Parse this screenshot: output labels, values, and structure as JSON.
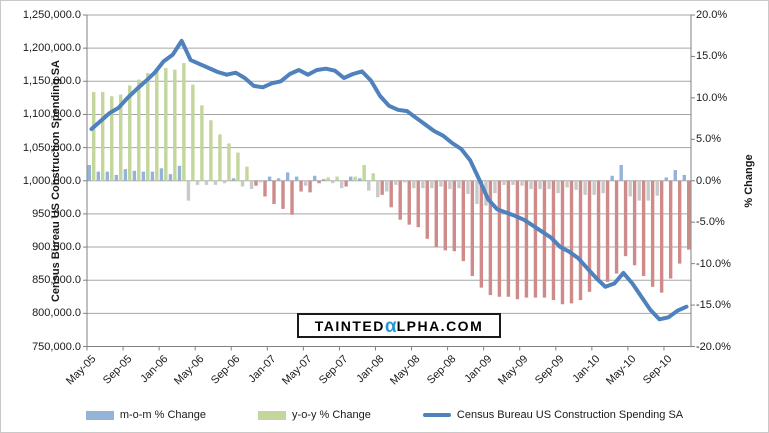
{
  "watermark": {
    "left": "TAINTED",
    "alpha": "α",
    "right": "LPHA.COM",
    "alpha_color": "#2798d4"
  },
  "chart_data": {
    "type": "combo-bar-line",
    "title": "",
    "legend_position": "bottom",
    "grid": "horizontal-only",
    "months": [
      "May-05",
      "Jun-05",
      "Jul-05",
      "Aug-05",
      "Sep-05",
      "Oct-05",
      "Nov-05",
      "Dec-05",
      "Jan-06",
      "Feb-06",
      "Mar-06",
      "Apr-06",
      "May-06",
      "Jun-06",
      "Jul-06",
      "Aug-06",
      "Sep-06",
      "Oct-06",
      "Nov-06",
      "Dec-06",
      "Jan-07",
      "Feb-07",
      "Mar-07",
      "Apr-07",
      "May-07",
      "Jun-07",
      "Jul-07",
      "Aug-07",
      "Sep-07",
      "Oct-07",
      "Nov-07",
      "Dec-07",
      "Jan-08",
      "Feb-08",
      "Mar-08",
      "Apr-08",
      "May-08",
      "Jun-08",
      "Jul-08",
      "Aug-08",
      "Sep-08",
      "Oct-08",
      "Nov-08",
      "Dec-08",
      "Jan-09",
      "Feb-09",
      "Mar-09",
      "Apr-09",
      "May-09",
      "Jun-09",
      "Jul-09",
      "Aug-09",
      "Sep-09",
      "Oct-09",
      "Nov-09",
      "Dec-09",
      "Jan-10",
      "Feb-10",
      "Mar-10",
      "Apr-10",
      "May-10",
      "Jun-10",
      "Jul-10",
      "Aug-10",
      "Sep-10",
      "Oct-10",
      "Nov-10"
    ],
    "x_axis": {
      "tick_every": 4,
      "labels_shown": [
        "May-05",
        "Sep-05",
        "Jan-06",
        "May-06",
        "Sep-06",
        "Jan-07",
        "May-07",
        "Sep-07",
        "Jan-08",
        "May-08",
        "Sep-08",
        "Jan-09",
        "May-09",
        "Sep-09",
        "Jan-10",
        "May-10",
        "Sep-10"
      ]
    },
    "left_axis": {
      "title": "Census Bureau US Construction Spending SA",
      "min": 750000,
      "max": 1250000,
      "step": 50000,
      "tick_labels": [
        "1,250,000.0",
        "1,200,000.0",
        "1,150,000.0",
        "1,100,000.0",
        "1,050,000.0",
        "1,000,000.0",
        "950,000.0",
        "900,000.0",
        "850,000.0",
        "800,000.0",
        "750,000.0"
      ]
    },
    "right_axis": {
      "title": "% Change",
      "min": -20,
      "max": 20,
      "step": 5,
      "tick_labels": [
        "20.0%",
        "15.0%",
        "10.0%",
        "5.0%",
        "0.0%",
        "-5.0%",
        "-10.0%",
        "-15.0%",
        "-20.0%"
      ]
    },
    "series": [
      {
        "name": "m-o-m % Change",
        "type": "bar",
        "axis": "right",
        "color_positive": "#95B3D7",
        "color_negative": "#C9C9C9",
        "values": [
          1.9,
          1.1,
          1.1,
          0.7,
          1.4,
          1.2,
          1.1,
          1.1,
          1.5,
          0.8,
          1.8,
          -2.4,
          -0.5,
          -0.5,
          -0.5,
          -0.3,
          0.3,
          -0.7,
          -1.0,
          -0.2,
          0.5,
          0.3,
          1.0,
          0.5,
          -0.6,
          0.6,
          0.2,
          -0.3,
          -0.9,
          0.5,
          0.3,
          -1.2,
          -2.0,
          -1.3,
          -0.5,
          -0.2,
          -0.9,
          -0.9,
          -0.9,
          -0.7,
          -1.0,
          -0.9,
          -1.6,
          -2.8,
          -3.0,
          -1.5,
          -0.5,
          -0.5,
          -0.6,
          -1.0,
          -1.0,
          -1.0,
          -1.5,
          -0.8,
          -1.1,
          -1.7,
          -1.7,
          -1.5,
          0.6,
          1.9,
          -1.9,
          -2.4,
          -2.4,
          -1.8,
          0.4,
          1.3,
          0.7
        ]
      },
      {
        "name": "y-o-y % Change",
        "type": "bar",
        "axis": "right",
        "color_positive": "#C3D69B",
        "color_negative": "#CF8A8A",
        "values": [
          10.7,
          10.7,
          10.2,
          10.4,
          11.5,
          12.2,
          13.0,
          13.3,
          13.6,
          13.4,
          14.2,
          11.6,
          9.1,
          7.3,
          5.6,
          4.5,
          3.4,
          1.7,
          -0.6,
          -1.9,
          -2.8,
          -3.4,
          -4.1,
          -1.3,
          -1.4,
          -0.3,
          0.4,
          0.5,
          -0.7,
          0.5,
          1.9,
          0.9,
          -1.7,
          -3.2,
          -4.7,
          -5.3,
          -5.6,
          -7.0,
          -8.0,
          -8.4,
          -8.5,
          -9.7,
          -11.5,
          -12.9,
          -13.8,
          -14.0,
          -14.0,
          -14.3,
          -14.1,
          -14.1,
          -14.1,
          -14.4,
          -14.9,
          -14.8,
          -14.4,
          -13.4,
          -12.2,
          -12.2,
          -11.2,
          -9.1,
          -10.2,
          -11.5,
          -12.8,
          -13.5,
          -11.8,
          -10.0,
          -8.3
        ]
      },
      {
        "name": "Census Bureau US Construction Spending SA",
        "type": "line",
        "axis": "left",
        "color": "#4F81BD",
        "width": 4,
        "values": [
          1078000,
          1090000,
          1102000,
          1110000,
          1125000,
          1138000,
          1150000,
          1163000,
          1180000,
          1190000,
          1211000,
          1182000,
          1176000,
          1170000,
          1164000,
          1160000,
          1163000,
          1155000,
          1143000,
          1141000,
          1147000,
          1150000,
          1161000,
          1167000,
          1160000,
          1167000,
          1169000,
          1166000,
          1155000,
          1161000,
          1165000,
          1151000,
          1128000,
          1113000,
          1107000,
          1105000,
          1095000,
          1085000,
          1075000,
          1068000,
          1057000,
          1048000,
          1031000,
          1002000,
          972000,
          957000,
          952000,
          947000,
          941000,
          932000,
          923000,
          914000,
          900000,
          893000,
          883000,
          868000,
          853000,
          840000,
          845000,
          861000,
          845000,
          825000,
          805000,
          791000,
          794000,
          804000,
          810000
        ]
      }
    ],
    "style": {
      "gridline_color": "#a6a6a6",
      "axis_line_color": "#808080",
      "plot_background": "#ffffff"
    }
  }
}
